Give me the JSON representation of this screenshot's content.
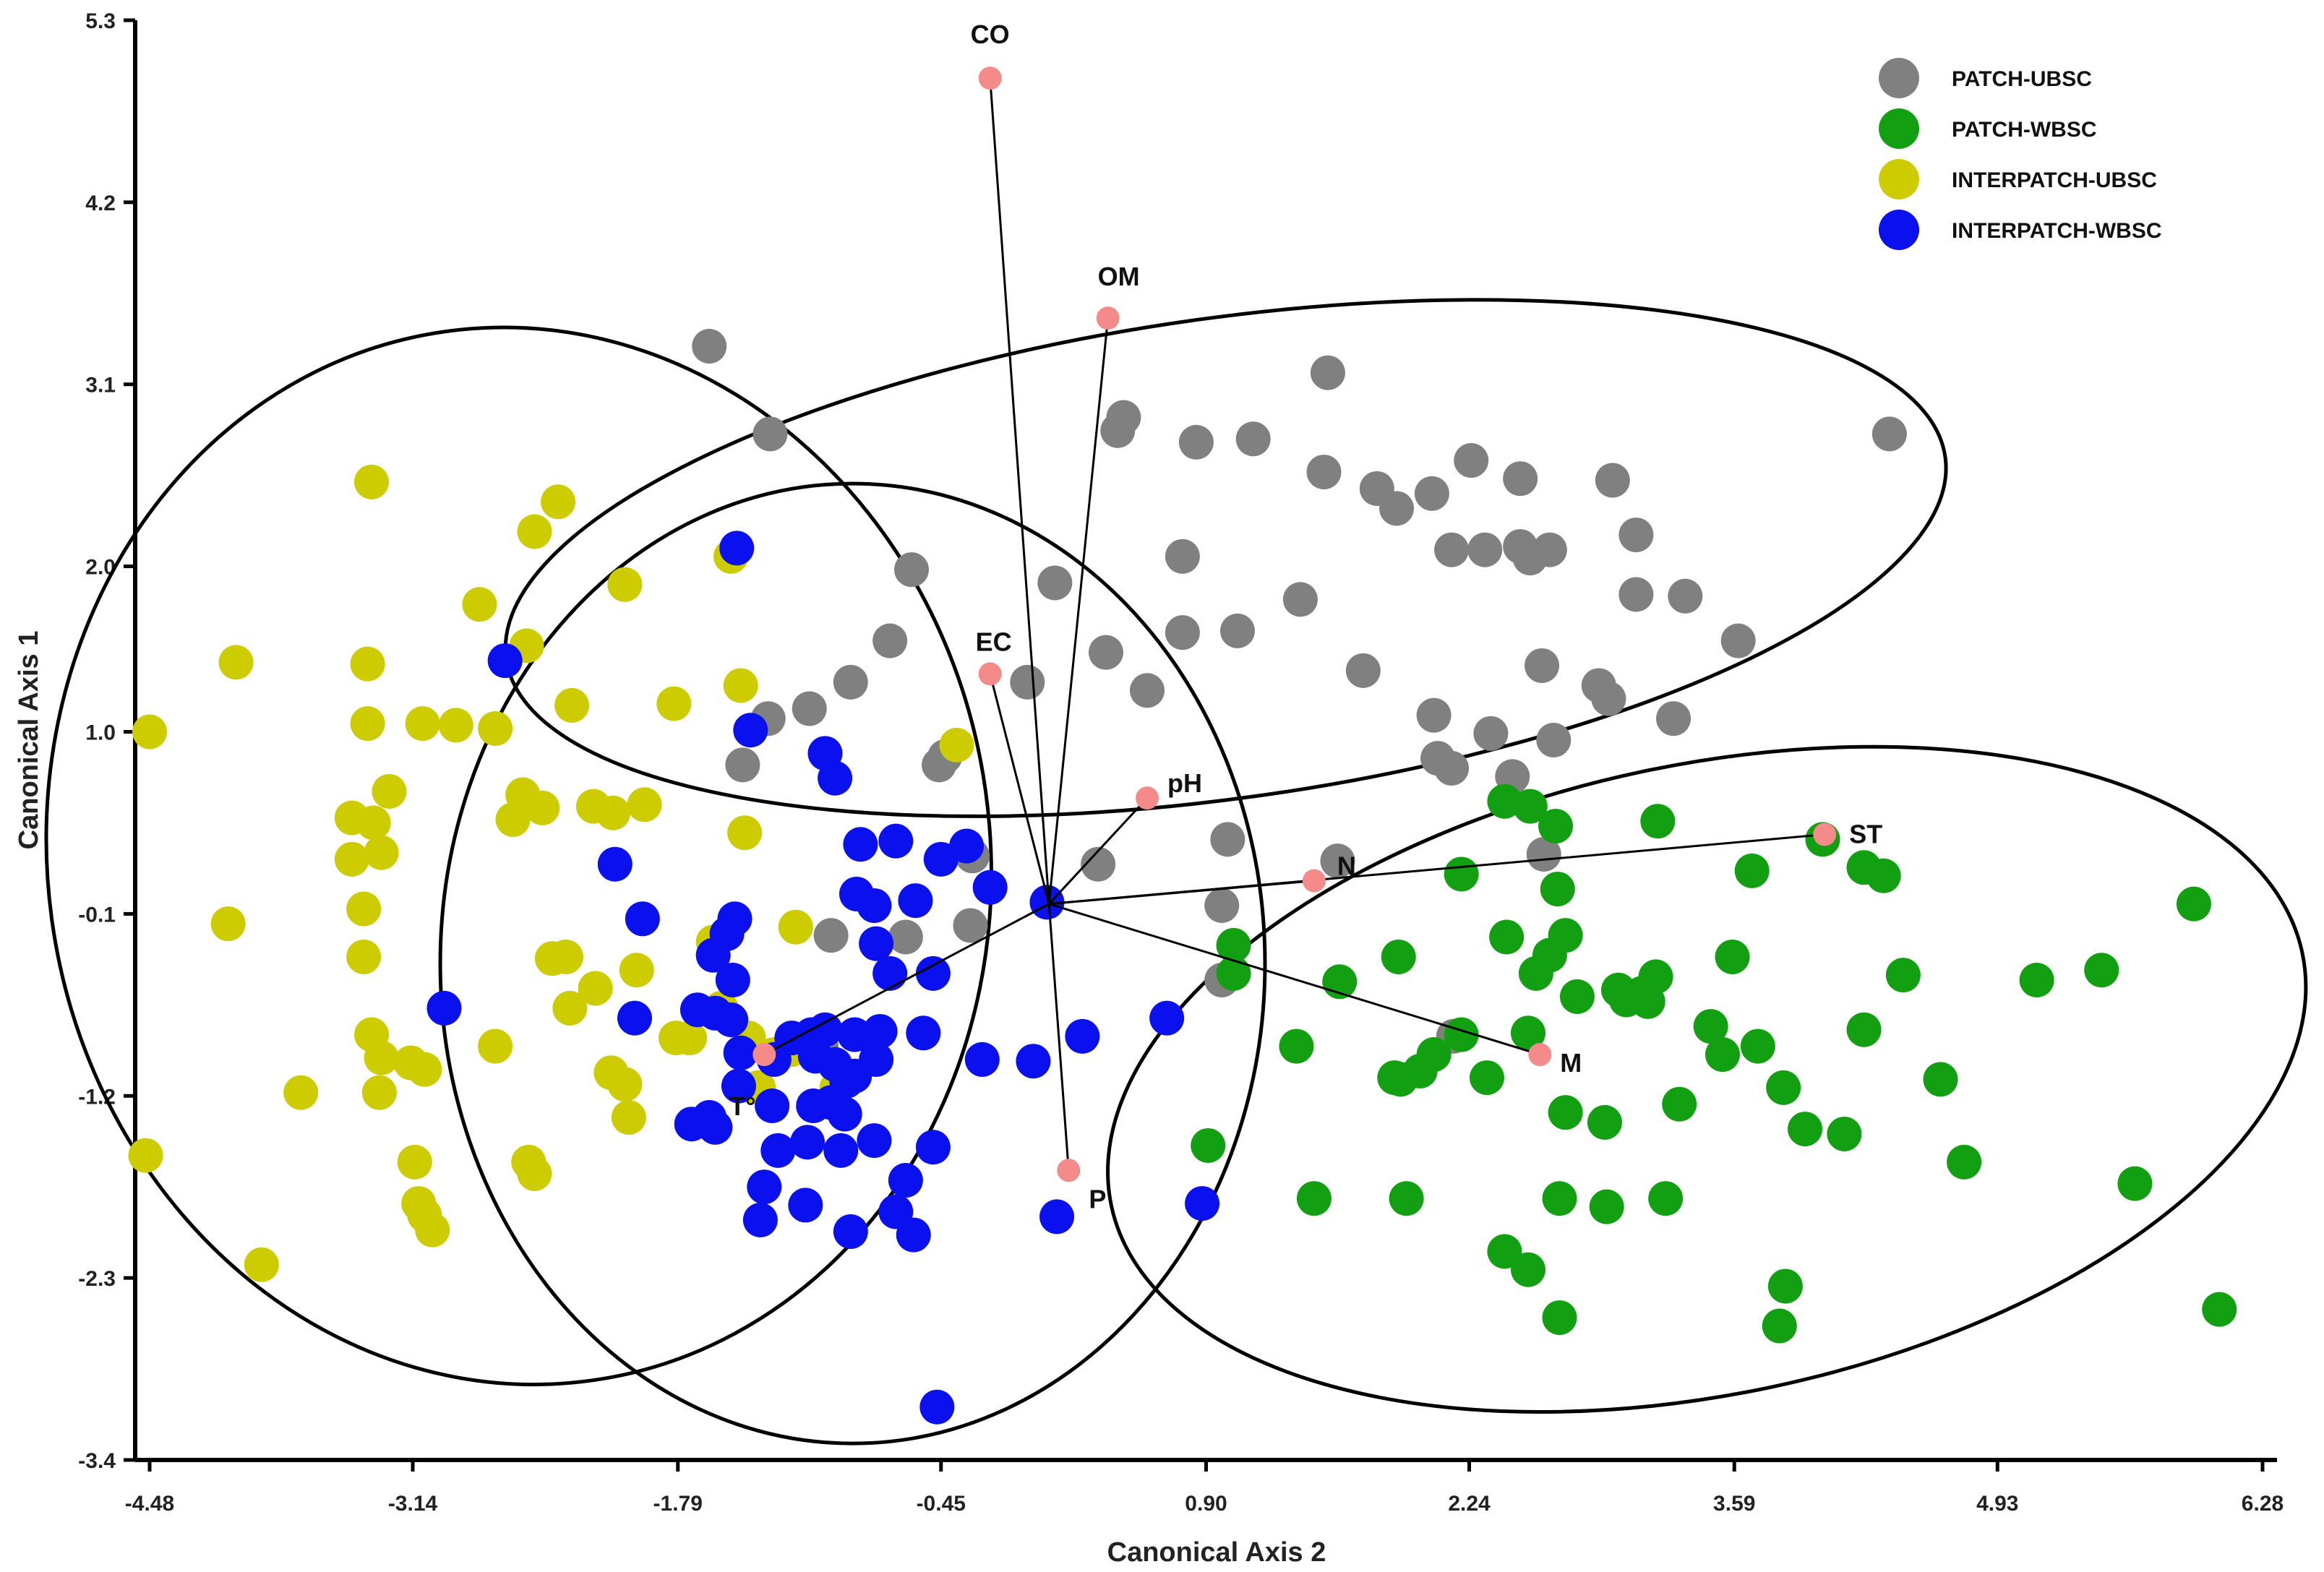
{
  "chart_data": {
    "type": "scatter",
    "xlabel": "Canonical Axis 2",
    "ylabel": "Canonical Axis 1",
    "xlim": [
      -4.48,
      6.28
    ],
    "ylim": [
      -3.4,
      5.3
    ],
    "xticks": [
      "-4.48",
      "-3.14",
      "-1.79",
      "-0.45",
      "0.90",
      "2.24",
      "3.59",
      "4.93",
      "6.28"
    ],
    "yticks": [
      "5.3",
      "4.2",
      "3.1",
      "2.0",
      "1.0",
      "-0.1",
      "-1.2",
      "-2.3",
      "-3.4"
    ],
    "colors": {
      "PATCH-UBSC": "#808080",
      "PATCH-WBSC": "#12a012",
      "INTERPATCH-UBSC": "#cccc00",
      "INTERPATCH-WBSC": "#0a10ee",
      "vector_point": "#f58a8a"
    },
    "legend_position": "top-right",
    "origin": [
      0.1,
      -0.04
    ],
    "vectors": [
      {
        "label": "CO",
        "x": -0.2,
        "y": 4.95
      },
      {
        "label": "OM",
        "x": 0.4,
        "y": 3.5
      },
      {
        "label": "EC",
        "x": -0.2,
        "y": 1.35
      },
      {
        "label": "pH",
        "x": 0.6,
        "y": 0.6
      },
      {
        "label": "ST",
        "x": 4.05,
        "y": 0.38
      },
      {
        "label": "N",
        "x": 1.45,
        "y": 0.1
      },
      {
        "label": "M",
        "x": 2.6,
        "y": -0.95
      },
      {
        "label": "T°",
        "x": -1.35,
        "y": -0.95
      },
      {
        "label": "P",
        "x": 0.2,
        "y": -1.65
      }
    ],
    "ellipses": [
      {
        "group": "PATCH-UBSC",
        "cx": 1.0,
        "cy": 2.05,
        "rx": 3.7,
        "ry": 1.45,
        "angle_deg": -8
      },
      {
        "group": "INTERPATCH-UBSC",
        "cx": -2.6,
        "cy": 0.25,
        "rx": 2.4,
        "ry": 3.2,
        "angle_deg": -8
      },
      {
        "group": "INTERPATCH-WBSC",
        "cx": -0.9,
        "cy": -0.4,
        "rx": 2.1,
        "ry": 2.9,
        "angle_deg": 0
      },
      {
        "group": "PATCH-WBSC",
        "cx": 3.45,
        "cy": -1.1,
        "rx": 3.1,
        "ry": 1.9,
        "angle_deg": -12
      }
    ],
    "series": [
      {
        "name": "PATCH-UBSC",
        "points": [
          [
            -1.63,
            3.33
          ],
          [
            -1.32,
            2.8
          ],
          [
            -0.6,
            1.98
          ],
          [
            0.13,
            1.9
          ],
          [
            0.48,
            2.9
          ],
          [
            0.45,
            2.82
          ],
          [
            0.85,
            2.75
          ],
          [
            1.14,
            2.77
          ],
          [
            1.52,
            3.17
          ],
          [
            1.5,
            2.57
          ],
          [
            1.77,
            2.47
          ],
          [
            1.87,
            2.35
          ],
          [
            2.05,
            2.44
          ],
          [
            2.25,
            2.64
          ],
          [
            2.15,
            2.1
          ],
          [
            2.32,
            2.1
          ],
          [
            2.5,
            2.12
          ],
          [
            2.55,
            2.05
          ],
          [
            2.65,
            2.1
          ],
          [
            2.5,
            2.53
          ],
          [
            2.97,
            2.52
          ],
          [
            3.09,
            2.19
          ],
          [
            3.09,
            1.83
          ],
          [
            3.34,
            1.82
          ],
          [
            3.61,
            1.55
          ],
          [
            4.38,
            2.8
          ],
          [
            0.78,
            2.06
          ],
          [
            1.38,
            1.8
          ],
          [
            1.06,
            1.61
          ],
          [
            0.78,
            1.6
          ],
          [
            0.39,
            1.48
          ],
          [
            0.6,
            1.25
          ],
          [
            -0.01,
            1.3
          ],
          [
            -0.71,
            1.55
          ],
          [
            -0.91,
            1.3
          ],
          [
            -1.12,
            1.14
          ],
          [
            -1.33,
            1.08
          ],
          [
            -0.46,
            0.8
          ],
          [
            1.7,
            1.37
          ],
          [
            2.61,
            1.4
          ],
          [
            2.9,
            1.28
          ],
          [
            2.95,
            1.2
          ],
          [
            3.28,
            1.08
          ],
          [
            2.06,
            1.1
          ],
          [
            2.35,
            0.99
          ],
          [
            2.67,
            0.95
          ],
          [
            2.08,
            0.84
          ],
          [
            2.15,
            0.78
          ],
          [
            2.46,
            0.73
          ],
          [
            2.62,
            0.26
          ],
          [
            -0.43,
            0.85
          ],
          [
            -1.46,
            0.8
          ],
          [
            -0.29,
            0.25
          ],
          [
            0.35,
            0.2
          ],
          [
            1.01,
            0.35
          ],
          [
            1.57,
            0.22
          ],
          [
            0.98,
            -0.05
          ],
          [
            0.98,
            -0.5
          ],
          [
            -0.63,
            -0.24
          ],
          [
            -1.06,
            -0.9
          ],
          [
            2.16,
            -0.84
          ],
          [
            -0.3,
            -0.17
          ],
          [
            -1.01,
            -0.23
          ]
        ]
      },
      {
        "name": "PATCH-WBSC",
        "points": [
          [
            2.42,
            0.58
          ],
          [
            2.55,
            0.55
          ],
          [
            2.68,
            0.43
          ],
          [
            3.2,
            0.46
          ],
          [
            4.25,
            0.18
          ],
          [
            4.35,
            0.13
          ],
          [
            3.68,
            0.16
          ],
          [
            2.2,
            0.14
          ],
          [
            2.69,
            0.05
          ],
          [
            4.04,
            0.35
          ],
          [
            5.93,
            -0.04
          ],
          [
            2.43,
            -0.24
          ],
          [
            2.73,
            -0.23
          ],
          [
            1.88,
            -0.36
          ],
          [
            1.04,
            -0.29
          ],
          [
            1.58,
            -0.51
          ],
          [
            2.58,
            -0.46
          ],
          [
            2.65,
            -0.35
          ],
          [
            1.04,
            -0.46
          ],
          [
            2.79,
            -0.6
          ],
          [
            3.0,
            -0.56
          ],
          [
            3.19,
            -0.48
          ],
          [
            3.04,
            -0.62
          ],
          [
            3.15,
            -0.63
          ],
          [
            3.12,
            -0.58
          ],
          [
            3.58,
            -0.36
          ],
          [
            4.45,
            -0.47
          ],
          [
            5.46,
            -0.44
          ],
          [
            5.13,
            -0.5
          ],
          [
            3.47,
            -0.78
          ],
          [
            4.25,
            -0.8
          ],
          [
            3.53,
            -0.95
          ],
          [
            3.71,
            -0.9
          ],
          [
            2.54,
            -0.82
          ],
          [
            2.2,
            -0.83
          ],
          [
            2.06,
            -0.95
          ],
          [
            1.99,
            -1.05
          ],
          [
            1.36,
            -0.9
          ],
          [
            1.86,
            -1.09
          ],
          [
            2.33,
            -1.09
          ],
          [
            2.73,
            -1.3
          ],
          [
            2.93,
            -1.36
          ],
          [
            3.31,
            -1.25
          ],
          [
            3.84,
            -1.15
          ],
          [
            3.95,
            -1.4
          ],
          [
            4.64,
            -1.1
          ],
          [
            4.15,
            -1.43
          ],
          [
            1.89,
            -1.1
          ],
          [
            0.91,
            -1.5
          ],
          [
            1.45,
            -1.82
          ],
          [
            1.92,
            -1.82
          ],
          [
            2.7,
            -1.82
          ],
          [
            2.94,
            -1.87
          ],
          [
            4.76,
            -1.6
          ],
          [
            5.63,
            -1.73
          ],
          [
            3.24,
            -1.82
          ],
          [
            2.42,
            -2.14
          ],
          [
            2.54,
            -2.25
          ],
          [
            3.85,
            -2.35
          ],
          [
            2.7,
            -2.54
          ],
          [
            3.82,
            -2.59
          ],
          [
            6.06,
            -2.49
          ]
        ]
      },
      {
        "name": "INTERPATCH-UBSC",
        "points": [
          [
            -3.35,
            2.51
          ],
          [
            -2.52,
            2.21
          ],
          [
            -2.4,
            2.39
          ],
          [
            -2.06,
            1.89
          ],
          [
            -1.52,
            2.06
          ],
          [
            -2.8,
            1.77
          ],
          [
            -2.56,
            1.52
          ],
          [
            -4.04,
            1.42
          ],
          [
            -3.37,
            1.41
          ],
          [
            -2.33,
            1.16
          ],
          [
            -1.81,
            1.17
          ],
          [
            -1.47,
            1.28
          ],
          [
            -3.09,
            1.05
          ],
          [
            -3.37,
            1.05
          ],
          [
            -2.92,
            1.04
          ],
          [
            -2.72,
            1.02
          ],
          [
            -4.48,
            1.0
          ],
          [
            -3.26,
            0.64
          ],
          [
            -2.58,
            0.62
          ],
          [
            -2.48,
            0.54
          ],
          [
            -2.63,
            0.47
          ],
          [
            -2.12,
            0.51
          ],
          [
            -2.22,
            0.55
          ],
          [
            -1.96,
            0.56
          ],
          [
            -3.45,
            0.48
          ],
          [
            -3.34,
            0.45
          ],
          [
            -3.3,
            0.27
          ],
          [
            -3.45,
            0.23
          ],
          [
            -1.45,
            0.39
          ],
          [
            -0.37,
            0.92
          ],
          [
            -4.08,
            -0.16
          ],
          [
            -3.39,
            -0.07
          ],
          [
            -3.39,
            -0.36
          ],
          [
            -2.43,
            -0.37
          ],
          [
            -2.36,
            -0.36
          ],
          [
            -1.19,
            -0.18
          ],
          [
            -1.61,
            -0.27
          ],
          [
            -1.57,
            -0.67
          ],
          [
            -2.21,
            -0.55
          ],
          [
            -2.0,
            -0.44
          ],
          [
            -2.34,
            -0.67
          ],
          [
            -1.8,
            -0.85
          ],
          [
            -1.73,
            -0.85
          ],
          [
            -1.43,
            -0.85
          ],
          [
            -1.3,
            -0.95
          ],
          [
            -1.21,
            -0.92
          ],
          [
            -3.35,
            -0.83
          ],
          [
            -2.72,
            -0.9
          ],
          [
            -3.3,
            -0.97
          ],
          [
            -3.15,
            -1.0
          ],
          [
            -3.08,
            -1.04
          ],
          [
            -2.13,
            -1.06
          ],
          [
            -2.06,
            -1.13
          ],
          [
            -2.04,
            -1.33
          ],
          [
            -1.38,
            -1.15
          ],
          [
            -0.98,
            -1.15
          ],
          [
            -3.71,
            -1.18
          ],
          [
            -3.31,
            -1.18
          ],
          [
            -4.5,
            -1.56
          ],
          [
            -3.13,
            -1.6
          ],
          [
            -2.55,
            -1.6
          ],
          [
            -2.52,
            -1.67
          ],
          [
            -3.11,
            -1.85
          ],
          [
            -3.08,
            -1.92
          ],
          [
            -3.04,
            -2.01
          ],
          [
            -3.91,
            -2.22
          ]
        ]
      },
      {
        "name": "INTERPATCH-WBSC",
        "points": [
          [
            -1.49,
            2.11
          ],
          [
            -2.67,
            1.43
          ],
          [
            -1.42,
            1.01
          ],
          [
            -1.04,
            0.87
          ],
          [
            -0.99,
            0.72
          ],
          [
            -0.86,
            0.32
          ],
          [
            -0.68,
            0.34
          ],
          [
            -0.32,
            0.31
          ],
          [
            -0.45,
            0.23
          ],
          [
            -2.11,
            0.2
          ],
          [
            -0.88,
            0.02
          ],
          [
            -0.79,
            -0.05
          ],
          [
            -0.58,
            -0.02
          ],
          [
            -0.2,
            0.06
          ],
          [
            0.09,
            -0.03
          ],
          [
            -0.78,
            -0.28
          ],
          [
            -1.5,
            -0.13
          ],
          [
            -1.54,
            -0.22
          ],
          [
            -1.61,
            -0.35
          ],
          [
            -1.51,
            -0.5
          ],
          [
            -0.71,
            -0.46
          ],
          [
            -0.49,
            -0.46
          ],
          [
            -1.97,
            -0.13
          ],
          [
            -2.01,
            -0.73
          ],
          [
            -2.98,
            -0.67
          ],
          [
            -1.6,
            -0.7
          ],
          [
            -1.52,
            -0.74
          ],
          [
            -1.69,
            -0.68
          ],
          [
            -1.21,
            -0.85
          ],
          [
            -1.11,
            -0.83
          ],
          [
            -1.04,
            -0.8
          ],
          [
            -0.89,
            -0.83
          ],
          [
            -0.76,
            -0.81
          ],
          [
            -1.47,
            -0.94
          ],
          [
            -1.3,
            -0.98
          ],
          [
            -1.09,
            -0.96
          ],
          [
            -0.99,
            -1.01
          ],
          [
            -0.93,
            -1.11
          ],
          [
            -0.89,
            -1.08
          ],
          [
            -0.78,
            -0.98
          ],
          [
            -0.54,
            -0.82
          ],
          [
            -0.24,
            -0.98
          ],
          [
            0.02,
            -0.99
          ],
          [
            0.27,
            -0.84
          ],
          [
            0.7,
            -0.73
          ],
          [
            -1.48,
            -1.14
          ],
          [
            -1.31,
            -1.26
          ],
          [
            -1.1,
            -1.26
          ],
          [
            -1.01,
            -1.24
          ],
          [
            -0.94,
            -1.31
          ],
          [
            -0.79,
            -1.47
          ],
          [
            -0.49,
            -1.51
          ],
          [
            -1.6,
            -1.39
          ],
          [
            -1.63,
            -1.33
          ],
          [
            -1.72,
            -1.37
          ],
          [
            -1.28,
            -1.53
          ],
          [
            -1.13,
            -1.48
          ],
          [
            -0.96,
            -1.53
          ],
          [
            -1.35,
            -1.75
          ],
          [
            -1.14,
            -1.86
          ],
          [
            -0.63,
            -1.71
          ],
          [
            -0.68,
            -1.9
          ],
          [
            -1.37,
            -1.95
          ],
          [
            -0.91,
            -2.02
          ],
          [
            -0.59,
            -2.04
          ],
          [
            0.14,
            -1.93
          ],
          [
            0.88,
            -1.85
          ],
          [
            -0.47,
            -3.08
          ]
        ]
      }
    ]
  }
}
